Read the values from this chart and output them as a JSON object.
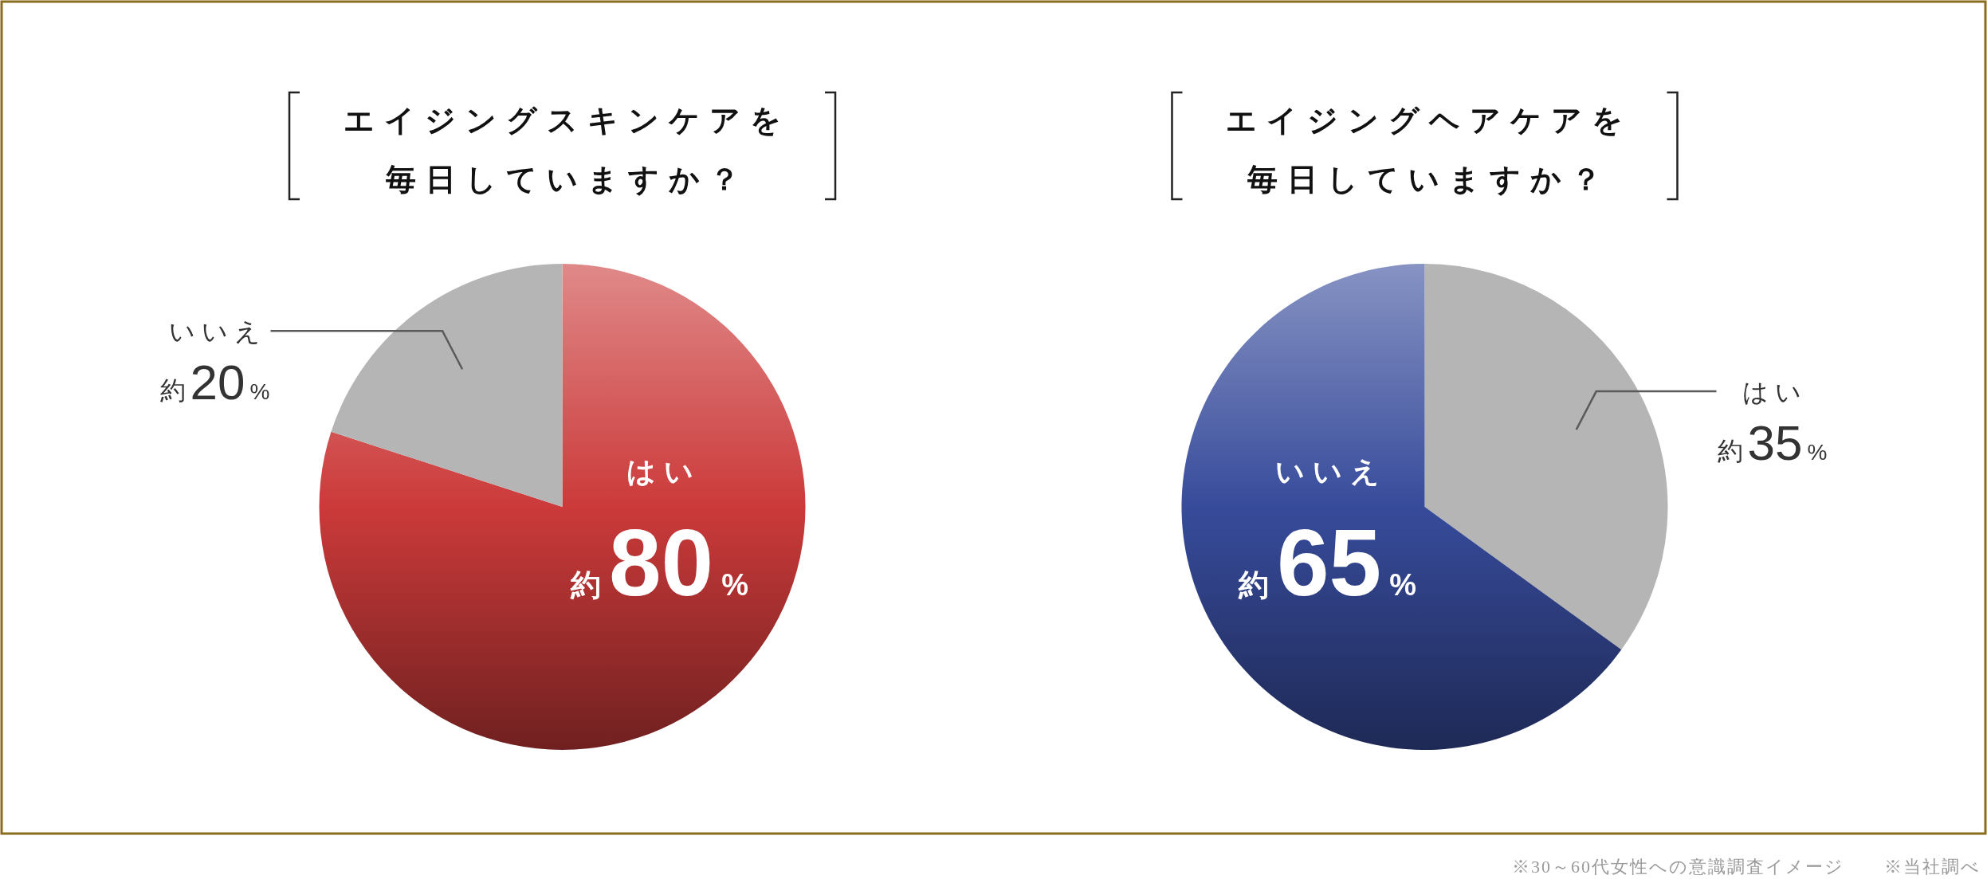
{
  "chart_data": [
    {
      "type": "pie",
      "title": "エイジングスキンケアを",
      "subtitle": "毎日していますか？",
      "categories": [
        "はい",
        "いいえ"
      ],
      "values": [
        80,
        20
      ],
      "colors": [
        "#cc3a3a",
        "#b5b5b5"
      ],
      "value_labels": [
        "約80%",
        "約20%"
      ]
    },
    {
      "type": "pie",
      "title": "エイジングヘアケアを",
      "subtitle": "毎日していますか？",
      "categories": [
        "はい",
        "いいえ"
      ],
      "values": [
        35,
        65
      ],
      "colors": [
        "#b5b5b5",
        "#374b9b"
      ],
      "value_labels": [
        "約35%",
        "約65%"
      ],
      "annotations": [
        "※30～60代女性への意識調査イメージ",
        "※当社調べ"
      ]
    }
  ]
}
